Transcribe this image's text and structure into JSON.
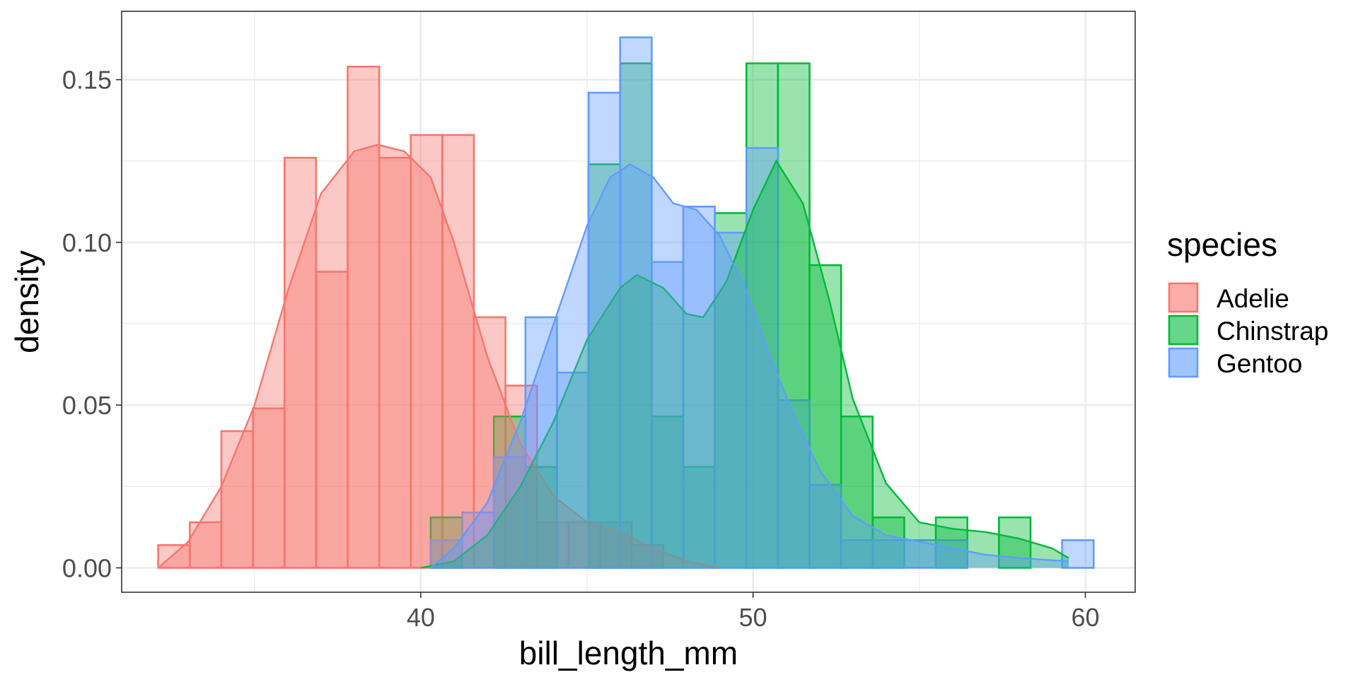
{
  "chart_data": {
    "type": "histogram",
    "title": "",
    "xlabel": "bill_length_mm",
    "ylabel": "density",
    "xlim": [
      31.0,
      61.5
    ],
    "ylim": [
      -0.0075,
      0.171
    ],
    "x_ticks": [
      40,
      50,
      60
    ],
    "x_tick_labels": [
      "40",
      "50",
      "60"
    ],
    "y_ticks": [
      0.0,
      0.05,
      0.1,
      0.15
    ],
    "y_tick_labels": [
      "0.00",
      "0.05",
      "0.10",
      "0.15"
    ],
    "grid": true,
    "bin_width": 0.95,
    "legend": {
      "title": "species",
      "position": "right",
      "entries": [
        "Adelie",
        "Chinstrap",
        "Gentoo"
      ]
    },
    "series": [
      {
        "name": "Adelie",
        "color": "#F8766D",
        "bins": [
          {
            "x0": 32.1,
            "density": 0.007
          },
          {
            "x0": 33.05,
            "density": 0.014
          },
          {
            "x0": 34.0,
            "density": 0.042
          },
          {
            "x0": 34.95,
            "density": 0.049
          },
          {
            "x0": 35.9,
            "density": 0.126
          },
          {
            "x0": 36.85,
            "density": 0.091
          },
          {
            "x0": 37.8,
            "density": 0.154
          },
          {
            "x0": 38.75,
            "density": 0.126
          },
          {
            "x0": 39.7,
            "density": 0.133
          },
          {
            "x0": 40.65,
            "density": 0.133
          },
          {
            "x0": 41.6,
            "density": 0.077
          },
          {
            "x0": 42.55,
            "density": 0.056
          },
          {
            "x0": 43.5,
            "density": 0.014
          },
          {
            "x0": 44.45,
            "density": 0.014
          },
          {
            "x0": 45.4,
            "density": 0.014
          },
          {
            "x0": 46.35,
            "density": 0.007
          }
        ],
        "density_curve": [
          [
            32.1,
            0.0
          ],
          [
            33.0,
            0.008
          ],
          [
            34.0,
            0.025
          ],
          [
            35.0,
            0.05
          ],
          [
            36.0,
            0.085
          ],
          [
            37.0,
            0.115
          ],
          [
            38.0,
            0.128
          ],
          [
            38.7,
            0.13
          ],
          [
            39.5,
            0.128
          ],
          [
            40.3,
            0.12
          ],
          [
            41.0,
            0.1
          ],
          [
            42.0,
            0.065
          ],
          [
            43.0,
            0.038
          ],
          [
            44.0,
            0.022
          ],
          [
            45.0,
            0.014
          ],
          [
            46.0,
            0.011
          ],
          [
            47.0,
            0.006
          ],
          [
            48.0,
            0.002
          ],
          [
            49.0,
            0.0
          ]
        ]
      },
      {
        "name": "Chinstrap",
        "color": "#00BA38",
        "bins": [
          {
            "x0": 40.3,
            "density": 0.0155
          },
          {
            "x0": 42.2,
            "density": 0.0465
          },
          {
            "x0": 43.15,
            "density": 0.031
          },
          {
            "x0": 45.05,
            "density": 0.124
          },
          {
            "x0": 46.0,
            "density": 0.155
          },
          {
            "x0": 46.95,
            "density": 0.0465
          },
          {
            "x0": 47.9,
            "density": 0.031
          },
          {
            "x0": 48.85,
            "density": 0.109
          },
          {
            "x0": 49.8,
            "density": 0.155
          },
          {
            "x0": 50.75,
            "density": 0.155
          },
          {
            "x0": 51.7,
            "density": 0.093
          },
          {
            "x0": 52.65,
            "density": 0.0465
          },
          {
            "x0": 53.6,
            "density": 0.0155
          },
          {
            "x0": 55.5,
            "density": 0.0155
          },
          {
            "x0": 57.4,
            "density": 0.0155
          }
        ],
        "density_curve": [
          [
            40.0,
            0.0
          ],
          [
            41.0,
            0.002
          ],
          [
            42.0,
            0.01
          ],
          [
            43.0,
            0.025
          ],
          [
            44.0,
            0.045
          ],
          [
            45.0,
            0.07
          ],
          [
            46.0,
            0.086
          ],
          [
            46.5,
            0.09
          ],
          [
            47.3,
            0.086
          ],
          [
            48.0,
            0.078
          ],
          [
            48.5,
            0.077
          ],
          [
            49.2,
            0.088
          ],
          [
            50.0,
            0.11
          ],
          [
            50.7,
            0.125
          ],
          [
            51.5,
            0.112
          ],
          [
            52.3,
            0.082
          ],
          [
            53.0,
            0.052
          ],
          [
            54.0,
            0.026
          ],
          [
            55.0,
            0.014
          ],
          [
            56.0,
            0.012
          ],
          [
            57.0,
            0.011
          ],
          [
            58.0,
            0.009
          ],
          [
            59.0,
            0.006
          ],
          [
            59.5,
            0.003
          ]
        ]
      },
      {
        "name": "Gentoo",
        "color": "#619CFF",
        "bins": [
          {
            "x0": 40.3,
            "density": 0.0085
          },
          {
            "x0": 41.25,
            "density": 0.017
          },
          {
            "x0": 42.2,
            "density": 0.034
          },
          {
            "x0": 43.15,
            "density": 0.077
          },
          {
            "x0": 44.1,
            "density": 0.06
          },
          {
            "x0": 45.05,
            "density": 0.146
          },
          {
            "x0": 46.0,
            "density": 0.163
          },
          {
            "x0": 46.95,
            "density": 0.094
          },
          {
            "x0": 47.9,
            "density": 0.111
          },
          {
            "x0": 48.85,
            "density": 0.103
          },
          {
            "x0": 49.8,
            "density": 0.129
          },
          {
            "x0": 50.75,
            "density": 0.0515
          },
          {
            "x0": 51.7,
            "density": 0.0255
          },
          {
            "x0": 52.65,
            "density": 0.0085
          },
          {
            "x0": 53.6,
            "density": 0.0085
          },
          {
            "x0": 54.55,
            "density": 0.0085
          },
          {
            "x0": 55.5,
            "density": 0.0085
          },
          {
            "x0": 59.3,
            "density": 0.0085
          }
        ],
        "density_curve": [
          [
            40.3,
            0.0
          ],
          [
            41.0,
            0.006
          ],
          [
            42.0,
            0.02
          ],
          [
            43.0,
            0.045
          ],
          [
            44.0,
            0.075
          ],
          [
            45.0,
            0.105
          ],
          [
            45.7,
            0.12
          ],
          [
            46.3,
            0.124
          ],
          [
            47.0,
            0.12
          ],
          [
            47.6,
            0.112
          ],
          [
            48.3,
            0.11
          ],
          [
            49.0,
            0.102
          ],
          [
            49.8,
            0.085
          ],
          [
            50.5,
            0.065
          ],
          [
            51.3,
            0.045
          ],
          [
            52.0,
            0.03
          ],
          [
            53.0,
            0.016
          ],
          [
            54.0,
            0.01
          ],
          [
            55.0,
            0.008
          ],
          [
            56.0,
            0.006
          ],
          [
            57.0,
            0.004
          ],
          [
            58.0,
            0.003
          ],
          [
            59.5,
            0.002
          ]
        ]
      }
    ]
  }
}
